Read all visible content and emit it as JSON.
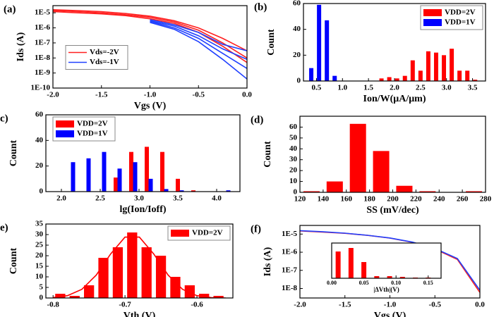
{
  "chart_data": [
    {
      "type": "line",
      "label": "(a)",
      "xlabel": "Vgs (V)",
      "ylabel": "Ids (A)",
      "ylog": true,
      "legend": "center-left",
      "x": [
        -2,
        -1.75,
        -1.5,
        -1.25,
        -1,
        -0.75,
        -0.5,
        -0.25,
        0
      ],
      "xlim": [
        -2,
        0
      ],
      "xticks": [
        {
          "value": -2,
          "label": "-2.0"
        },
        -1.5,
        {
          "value": -1,
          "label": "-1.0"
        },
        -0.5,
        {
          "value": 0,
          "label": "0.0"
        }
      ],
      "ylim": [
        1e-10,
        3e-05
      ],
      "yticks": [
        {
          "value": 1e-10,
          "label": "1E-10"
        },
        {
          "value": 1e-09,
          "label": "1E-9"
        },
        {
          "value": 1e-08,
          "label": "1E-8"
        },
        {
          "value": 1e-07,
          "label": "1E-7"
        },
        {
          "value": 1e-06,
          "label": "1E-6"
        },
        {
          "value": 1e-05,
          "label": "1E-5"
        }
      ],
      "series": [
        {
          "name": "Vds=-2V",
          "color": "#ff2020",
          "values": [
            1.6e-05,
            1.4e-05,
            1.2e-05,
            9e-06,
            6e-06,
            3e-06,
            1e-06,
            2e-07,
            3e-08
          ]
        },
        {
          "color": "#ff2020",
          "values": [
            1.4e-05,
            1.2e-05,
            1e-05,
            7.5e-06,
            5e-06,
            2.5e-06,
            7e-07,
            1e-07,
            1e-08
          ]
        },
        {
          "color": "#ff2020",
          "values": [
            1.2e-05,
            1e-05,
            8.5e-06,
            6.5e-06,
            4e-06,
            2e-06,
            5e-07,
            6e-08,
            5e-09
          ]
        },
        {
          "name": "Vds=-1V",
          "color": "#2040ff",
          "values": [
            null,
            null,
            null,
            null,
            3.5e-06,
            1.6e-06,
            5e-07,
            8e-08,
            3e-08
          ]
        },
        {
          "color": "#2040ff",
          "values": [
            null,
            null,
            null,
            null,
            3e-06,
            1.3e-06,
            3e-07,
            4e-08,
            8e-09
          ]
        },
        {
          "color": "#2040ff",
          "values": [
            null,
            null,
            null,
            null,
            2.7e-06,
            1e-06,
            2e-07,
            2e-08,
            2e-09
          ]
        },
        {
          "color": "#2040ff",
          "values": [
            null,
            null,
            null,
            null,
            2.3e-06,
            8e-07,
            1.2e-07,
            8e-09,
            4e-10
          ]
        }
      ]
    },
    {
      "type": "bar",
      "label": "(b)",
      "xlabel": "Ion/W(μA/μm)",
      "ylabel": "Count",
      "legend": "top-right",
      "x": [
        0.4,
        0.55,
        0.7,
        0.85,
        1.75,
        1.9,
        2.05,
        2.2,
        2.35,
        2.5,
        2.65,
        2.8,
        2.95,
        3.1,
        3.25,
        3.4,
        3.55
      ],
      "xlim": [
        0.25,
        3.75
      ],
      "xticks": [
        0.5,
        {
          "value": 1,
          "label": "1.0"
        },
        1.5,
        {
          "value": 2,
          "label": "2.0"
        },
        2.5,
        {
          "value": 3,
          "label": "3.0"
        },
        3.5
      ],
      "ylim": [
        0,
        60
      ],
      "yticks": [
        0,
        20,
        40,
        60
      ],
      "series": [
        {
          "name": "VDD=2V",
          "color": "#ff0000",
          "values": [
            null,
            null,
            null,
            null,
            2,
            3,
            2,
            4,
            16,
            8,
            23,
            22,
            20,
            25,
            8,
            8,
            1
          ]
        },
        {
          "name": "VDD=1V",
          "color": "#0000ff",
          "values": [
            10,
            59,
            47,
            4,
            null,
            null,
            null,
            null,
            null,
            null,
            null,
            null,
            null,
            null,
            null,
            null,
            null
          ]
        }
      ]
    },
    {
      "type": "bar",
      "label": "(c)",
      "xlabel": "lg(Ion/Ioff)",
      "ylabel": "Count",
      "legend": "top-left",
      "x": [
        2.15,
        2.35,
        2.55,
        2.7,
        2.75,
        2.9,
        2.95,
        3.1,
        3.15,
        3.3,
        3.35,
        3.5,
        3.55,
        3.7,
        4.15
      ],
      "xlim": [
        1.8,
        4.3
      ],
      "xticks": [
        {
          "value": 2,
          "label": "2.0"
        },
        2.5,
        {
          "value": 3,
          "label": "3.0"
        },
        3.5,
        {
          "value": 4,
          "label": "4.0"
        }
      ],
      "ylim": [
        0,
        60
      ],
      "yticks": [
        0,
        20,
        40,
        60
      ],
      "series": [
        {
          "name": "VDD=2V",
          "color": "#ff0000",
          "values": [
            null,
            null,
            null,
            11,
            null,
            31,
            null,
            35,
            null,
            31,
            null,
            10,
            null,
            1,
            null
          ]
        },
        {
          "name": "VDD=1V",
          "color": "#0000ff",
          "values": [
            23,
            26,
            31,
            null,
            18,
            null,
            23,
            null,
            10,
            null,
            2,
            null,
            1,
            null,
            1
          ]
        }
      ]
    },
    {
      "type": "histogram",
      "label": "(d)",
      "xlabel": "SS (mV/dec)",
      "ylabel": "Count",
      "color": "#ff0000",
      "bins": [
        120,
        140,
        160,
        180,
        200,
        220,
        240,
        260,
        280
      ],
      "values": [
        1,
        10,
        63,
        38,
        6,
        1,
        0,
        1
      ],
      "xlim": [
        120,
        280
      ],
      "xticks": [
        120,
        140,
        160,
        180,
        200,
        220,
        240,
        260,
        280
      ],
      "ylim": [
        0,
        70
      ],
      "yticks": [
        0,
        10,
        20,
        30,
        40,
        50,
        60
      ]
    },
    {
      "type": "histogram",
      "label": "(e)",
      "xlabel": "Vth (V)",
      "ylabel": "Count",
      "color": "#ff0000",
      "name": "VDD=2V",
      "legend": "top-right",
      "bins": [
        -0.8,
        -0.78,
        -0.76,
        -0.74,
        -0.72,
        -0.7,
        -0.68,
        -0.66,
        -0.64,
        -0.62,
        -0.6,
        -0.58,
        -0.56
      ],
      "values": [
        2,
        1,
        6,
        19,
        24,
        31,
        24,
        20,
        10,
        6,
        2,
        1
      ],
      "xlim": [
        -0.81,
        -0.55
      ],
      "xticks": [
        -0.8,
        -0.7,
        -0.6
      ],
      "ylim": [
        0,
        35
      ],
      "yticks": [
        0,
        5,
        10,
        15,
        20,
        25,
        30,
        35
      ],
      "series": [
        {
          "color": "#ff0000",
          "x": [
            -0.8,
            -0.78,
            -0.76,
            -0.74,
            -0.72,
            -0.7,
            -0.68,
            -0.66,
            -0.64,
            -0.62,
            -0.6,
            -0.58,
            -0.56
          ],
          "values": [
            0.2,
            1.1,
            4.1,
            10.8,
            20.8,
            28.8,
            28.8,
            20.8,
            10.8,
            4.1,
            1.1,
            0.2,
            0
          ]
        }
      ]
    },
    {
      "type": "line",
      "label": "(f)",
      "xlabel": "Vgs (V)",
      "ylabel": "Ids (A)",
      "ylog": true,
      "x": [
        -2,
        -1.75,
        -1.5,
        -1.25,
        -1,
        -0.75,
        -0.5,
        -0.25,
        0
      ],
      "xlim": [
        -2,
        0
      ],
      "xticks": [
        {
          "value": -2,
          "label": "-2.0"
        },
        -1.5,
        {
          "value": -1,
          "label": "-1.0"
        },
        -0.5,
        {
          "value": 0,
          "label": "0.0"
        }
      ],
      "ylim": [
        3e-09,
        3e-05
      ],
      "yticks": [
        {
          "value": 1e-08,
          "label": "1E-8"
        },
        {
          "value": 1e-07,
          "label": "1E-7"
        },
        {
          "value": 1e-06,
          "label": "1E-6"
        },
        {
          "value": 1e-05,
          "label": "1E-5"
        }
      ],
      "series": [
        {
          "color": "#ff2020",
          "values": [
            1.5e-05,
            1.3e-05,
            1.1e-05,
            8.5e-06,
            6e-06,
            3.5e-06,
            1.5e-06,
            4e-07,
            6e-09
          ]
        },
        {
          "color": "#2040ff",
          "values": [
            1.55e-05,
            1.35e-05,
            1.12e-05,
            8.6e-06,
            6.1e-06,
            3.6e-06,
            1.6e-06,
            4.5e-07,
            8e-09
          ]
        }
      ],
      "inset": {
        "type": "bar",
        "xlabel": "|ΔVth|(V)",
        "color": "#ff0000",
        "x": [
          0.01,
          0.03,
          0.05,
          0.07,
          0.09,
          0.11,
          0.13,
          0.15
        ],
        "values": [
          38,
          43,
          23,
          3,
          3,
          2,
          1,
          1
        ],
        "xlim": [
          0,
          0.17
        ],
        "xticks": [
          {
            "value": 0,
            "label": "0.00"
          },
          {
            "value": 0.05,
            "label": "0.05"
          },
          {
            "value": 0.1,
            "label": "0.10"
          },
          {
            "value": 0.15,
            "label": "0.15"
          }
        ],
        "ylim": [
          0,
          50
        ]
      }
    }
  ]
}
